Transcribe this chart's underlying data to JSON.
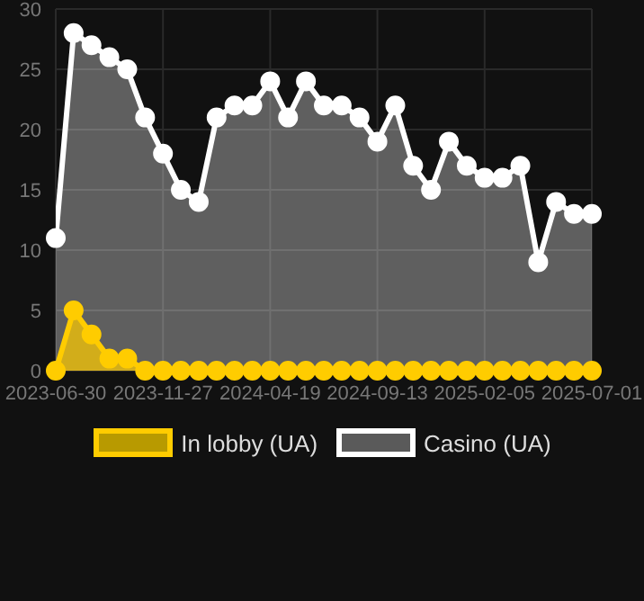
{
  "chart_data": {
    "type": "area",
    "categories": [
      "2023-06-30",
      null,
      null,
      null,
      null,
      null,
      "2023-11-27",
      null,
      null,
      null,
      null,
      null,
      "2024-04-19",
      null,
      null,
      null,
      null,
      null,
      "2024-09-13",
      null,
      null,
      null,
      null,
      null,
      "2025-02-05",
      null,
      null,
      null,
      null,
      null,
      "2025-07-01"
    ],
    "series": [
      {
        "name": "In lobby (UA)",
        "color": "#ffcc00",
        "values": [
          0,
          5,
          3,
          1,
          1,
          0,
          0,
          0,
          0,
          0,
          0,
          0,
          0,
          0,
          0,
          0,
          0,
          0,
          0,
          0,
          0,
          0,
          0,
          0,
          0,
          0,
          0,
          0,
          0,
          0,
          0
        ]
      },
      {
        "name": "Casino (UA)",
        "color": "#ffffff",
        "values": [
          11,
          28,
          27,
          26,
          25,
          21,
          18,
          15,
          14,
          21,
          22,
          22,
          24,
          21,
          24,
          22,
          22,
          21,
          19,
          22,
          17,
          15,
          19,
          17,
          16,
          16,
          17,
          9,
          14,
          13,
          13
        ]
      }
    ],
    "ylim": [
      0,
      30
    ],
    "yticks": [
      0,
      5,
      10,
      15,
      20,
      25,
      30
    ],
    "grid": true,
    "legend": "bottom",
    "marker": "circle"
  }
}
